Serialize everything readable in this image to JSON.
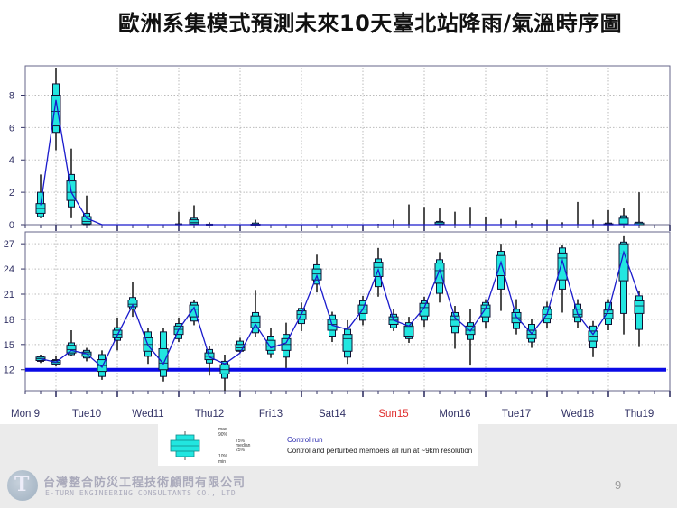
{
  "title": "歐洲系集模式預測未來10天臺北站降雨/氣溫時序圖",
  "page_number": "9",
  "company": {
    "name_zh": "台灣整合防災工程技術顧問有限公司",
    "name_en": "E-TURN ENGINEERING CONSULTANTS CO., LTD"
  },
  "legend": {
    "max": "max",
    "p90": "90%",
    "p75": "75%",
    "median": "median",
    "p25": "25%",
    "p10": "10%",
    "min": "min",
    "control_run": "Control run",
    "note": "Control and perturbed members all run at ~9km resolution"
  },
  "colors": {
    "box": "#22e6e0",
    "control": "#1a1acc",
    "reference": "#0a0ae6",
    "sunday": "#e03030",
    "day": "#333366"
  },
  "chart_data": [
    {
      "type": "boxplot",
      "panel": "precipitation",
      "x_step_hours": 6,
      "yticks": [
        0,
        2,
        4,
        6,
        8
      ],
      "ylim": [
        0,
        9.7
      ],
      "grid": true,
      "stats_order": [
        "min",
        "p10",
        "p25",
        "median",
        "p75",
        "p90",
        "max"
      ],
      "boxes": [
        [
          0.4,
          0.5,
          0.7,
          1.0,
          1.3,
          2.0,
          3.1
        ],
        [
          4.6,
          5.7,
          6.1,
          7.0,
          8.0,
          8.7,
          9.7
        ],
        [
          0.4,
          1.1,
          1.5,
          2.0,
          2.7,
          3.1,
          4.7
        ],
        [
          0,
          0,
          0.05,
          0.2,
          0.5,
          0.7,
          1.8
        ],
        [
          0,
          0,
          0,
          0,
          0,
          0,
          0
        ],
        [
          0,
          0,
          0,
          0,
          0,
          0,
          0
        ],
        [
          0,
          0,
          0,
          0,
          0,
          0,
          0
        ],
        [
          0,
          0,
          0,
          0,
          0,
          0,
          0
        ],
        [
          0,
          0,
          0,
          0,
          0,
          0,
          0
        ],
        [
          0,
          0,
          0,
          0,
          0,
          0.05,
          0.8
        ],
        [
          0,
          0,
          0.05,
          0.15,
          0.3,
          0.4,
          1.2
        ],
        [
          0,
          0,
          0,
          0,
          0,
          0.03,
          0.15
        ],
        [
          0,
          0,
          0,
          0,
          0,
          0,
          0
        ],
        [
          0,
          0,
          0,
          0,
          0,
          0,
          0
        ],
        [
          0,
          0,
          0,
          0,
          0.03,
          0.1,
          0.3
        ],
        [
          0,
          0,
          0,
          0,
          0,
          0,
          0
        ],
        [
          0,
          0,
          0,
          0,
          0,
          0,
          0
        ],
        [
          0,
          0,
          0,
          0,
          0,
          0,
          0
        ],
        [
          0,
          0,
          0,
          0,
          0,
          0,
          0
        ],
        [
          0,
          0,
          0,
          0,
          0,
          0,
          0
        ],
        [
          0,
          0,
          0,
          0,
          0,
          0,
          0
        ],
        [
          0,
          0,
          0,
          0,
          0,
          0,
          0
        ],
        [
          0,
          0,
          0,
          0,
          0,
          0,
          0.05
        ],
        [
          0,
          0,
          0,
          0,
          0,
          0,
          0.3
        ],
        [
          0,
          0,
          0,
          0,
          0,
          0,
          1.25
        ],
        [
          0,
          0,
          0,
          0,
          0,
          0,
          1.1
        ],
        [
          0,
          0,
          0,
          0.05,
          0.15,
          0.2,
          1.0
        ],
        [
          0,
          0,
          0,
          0,
          0,
          0,
          0.8
        ],
        [
          0,
          0,
          0,
          0,
          0,
          0,
          1.1
        ],
        [
          0,
          0,
          0,
          0,
          0,
          0,
          0.5
        ],
        [
          0,
          0,
          0,
          0,
          0,
          0.02,
          0.35
        ],
        [
          0,
          0,
          0,
          0,
          0,
          0,
          0.25
        ],
        [
          0,
          0,
          0,
          0,
          0,
          0,
          0.1
        ],
        [
          0,
          0,
          0,
          0,
          0,
          0,
          0.3
        ],
        [
          0,
          0,
          0,
          0,
          0,
          0.02,
          0.15
        ],
        [
          0,
          0,
          0,
          0,
          0,
          0,
          1.4
        ],
        [
          0,
          0,
          0,
          0,
          0,
          0.02,
          0.3
        ],
        [
          0,
          0,
          0,
          0,
          0.05,
          0.1,
          0.9
        ],
        [
          0,
          0,
          0,
          0.05,
          0.4,
          0.55,
          1.0
        ],
        [
          0,
          0,
          0,
          0,
          0.1,
          0.15,
          2.0
        ]
      ],
      "control": [
        1.2,
        7.7,
        2.0,
        0.4,
        0,
        0,
        0,
        0,
        0,
        0,
        0,
        0,
        0,
        0,
        0,
        0,
        0,
        0,
        0,
        0,
        0,
        0,
        0,
        0,
        0,
        0,
        0,
        0,
        0,
        0,
        0,
        0,
        0,
        0,
        0,
        0,
        0,
        0,
        0,
        0
      ]
    },
    {
      "type": "boxplot",
      "panel": "temperature",
      "x_step_hours": 6,
      "yticks": [
        12,
        15,
        18,
        21,
        24,
        27
      ],
      "ylim": [
        9.5,
        28.2
      ],
      "grid": true,
      "reference_line": 12,
      "stats_order": [
        "min",
        "p10",
        "p25",
        "median",
        "p75",
        "p90",
        "max"
      ],
      "boxes": [
        [
          12.8,
          13.0,
          13.1,
          13.3,
          13.5,
          13.6,
          13.8
        ],
        [
          12.4,
          12.6,
          12.7,
          12.9,
          13.1,
          13.2,
          13.6
        ],
        [
          13.6,
          13.8,
          14.0,
          14.4,
          14.9,
          15.2,
          16.7
        ],
        [
          13.0,
          13.4,
          13.6,
          13.9,
          14.1,
          14.3,
          14.6
        ],
        [
          10.8,
          11.2,
          11.8,
          12.5,
          13.2,
          13.8,
          14.3
        ],
        [
          14.3,
          15.5,
          15.8,
          16.2,
          16.7,
          17.0,
          18.2
        ],
        [
          18.3,
          19.2,
          19.5,
          19.8,
          20.3,
          20.6,
          22.5
        ],
        [
          12.7,
          13.6,
          14.2,
          15.0,
          15.8,
          16.5,
          17.0
        ],
        [
          10.6,
          11.2,
          12.0,
          12.8,
          14.5,
          16.5,
          17.0
        ],
        [
          15.3,
          15.7,
          16.2,
          16.8,
          17.2,
          17.5,
          18.2
        ],
        [
          17.3,
          17.8,
          18.3,
          19.2,
          19.7,
          20.0,
          20.3
        ],
        [
          11.3,
          12.8,
          13.2,
          13.6,
          14.0,
          14.4,
          14.8
        ],
        [
          9.5,
          11.0,
          11.5,
          12.0,
          12.6,
          13.0,
          13.8
        ],
        [
          14.0,
          14.2,
          14.3,
          14.6,
          15.0,
          15.4,
          15.8
        ],
        [
          15.9,
          16.4,
          17.0,
          17.6,
          18.4,
          18.8,
          21.5
        ],
        [
          13.4,
          13.9,
          14.3,
          14.8,
          15.5,
          16.0,
          17.0
        ],
        [
          12.2,
          13.5,
          14.3,
          15.0,
          15.7,
          16.2,
          17.6
        ],
        [
          16.6,
          17.5,
          18.0,
          18.6,
          19.0,
          19.3,
          20.0
        ],
        [
          21.2,
          22.2,
          22.7,
          23.4,
          24.0,
          24.5,
          25.7
        ],
        [
          15.3,
          16.0,
          16.7,
          17.4,
          18.0,
          18.5,
          18.9
        ],
        [
          12.7,
          13.5,
          14.2,
          15.7,
          16.2,
          16.8,
          17.9
        ],
        [
          17.3,
          17.9,
          18.7,
          19.2,
          19.7,
          20.2,
          20.8
        ],
        [
          20.7,
          21.9,
          23.1,
          24.2,
          24.8,
          25.2,
          26.5
        ],
        [
          16.6,
          17.0,
          17.4,
          17.9,
          18.3,
          18.6,
          19.2
        ],
        [
          15.2,
          15.7,
          16.0,
          17.0,
          17.2,
          17.6,
          18.3
        ],
        [
          17.1,
          17.9,
          18.4,
          19.4,
          19.9,
          20.2,
          20.7
        ],
        [
          20.0,
          21.1,
          22.3,
          23.8,
          24.7,
          25.1,
          26.0
        ],
        [
          14.5,
          16.4,
          17.2,
          17.9,
          18.4,
          18.8,
          19.6
        ],
        [
          12.5,
          15.6,
          16.2,
          16.7,
          17.2,
          17.6,
          19.2
        ],
        [
          16.9,
          17.7,
          18.3,
          19.3,
          19.7,
          20.0,
          20.4
        ],
        [
          19.0,
          21.6,
          23.2,
          24.7,
          25.6,
          26.1,
          27.0
        ],
        [
          16.2,
          16.9,
          17.6,
          18.2,
          18.8,
          19.2,
          20.4
        ],
        [
          14.6,
          15.3,
          15.7,
          16.2,
          16.7,
          17.4,
          18.1
        ],
        [
          17.0,
          17.6,
          18.1,
          18.6,
          19.2,
          19.5,
          20.1
        ],
        [
          18.8,
          21.6,
          22.7,
          25.3,
          25.9,
          26.5,
          26.8
        ],
        [
          17.0,
          17.7,
          18.3,
          18.6,
          19.2,
          19.8,
          20.4
        ],
        [
          13.5,
          14.6,
          15.4,
          16.0,
          16.6,
          17.2,
          17.8
        ],
        [
          16.7,
          17.4,
          18.1,
          18.7,
          19.1,
          20.0,
          20.4
        ],
        [
          16.2,
          18.7,
          22.6,
          25.8,
          27.0,
          27.2,
          28.0
        ],
        [
          14.7,
          16.8,
          18.7,
          19.6,
          20.2,
          20.8,
          21.4
        ]
      ],
      "control": [
        13.3,
        12.9,
        14.3,
        13.9,
        12.3,
        16.1,
        19.7,
        14.9,
        12.7,
        16.8,
        19.4,
        13.5,
        12.7,
        14.0,
        17.4,
        14.6,
        15.2,
        18.6,
        23.2,
        17.3,
        16.8,
        19.2,
        23.9,
        17.9,
        17.2,
        19.4,
        23.9,
        18.2,
        16.6,
        19.3,
        24.8,
        18.3,
        16.3,
        18.6,
        25.0,
        18.6,
        16.2,
        19.0,
        26.0,
        20.8
      ]
    }
  ],
  "x_axis": {
    "day_labels": [
      "Mon 9",
      "Tue10",
      "Wed11",
      "Thu12",
      "Fri13",
      "Sat14",
      "Sun15",
      "Mon16",
      "Tue17",
      "Wed18",
      "Thu19"
    ],
    "weekend_highlight": "Sun15"
  }
}
